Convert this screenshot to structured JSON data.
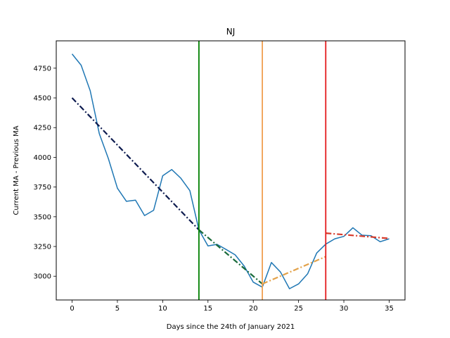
{
  "chart_data": {
    "type": "line",
    "title": "NJ",
    "xlabel": "Days since the 24th of January 2021",
    "ylabel": "Current MA - Previous MA",
    "xlim": [
      -1.75,
      36.75
    ],
    "ylim": [
      2800,
      4980
    ],
    "xticks": [
      0,
      5,
      10,
      15,
      20,
      25,
      30,
      35
    ],
    "yticks": [
      3000,
      3250,
      3500,
      3750,
      4000,
      4250,
      4500,
      4750
    ],
    "grid": false,
    "series": [
      {
        "style": "solid",
        "color": "#1f77b4",
        "x": [
          0,
          1,
          2,
          3,
          4,
          5,
          6,
          7,
          8,
          9,
          10,
          11,
          12,
          13,
          14,
          15,
          16,
          17,
          18,
          19,
          20,
          21,
          22,
          23,
          24,
          25,
          26,
          27,
          28,
          29,
          30,
          31,
          32,
          33,
          34,
          35
        ],
        "y": [
          4870,
          4775,
          4560,
          4200,
          3990,
          3740,
          3630,
          3640,
          3510,
          3555,
          3845,
          3897,
          3825,
          3720,
          3390,
          3255,
          3268,
          3225,
          3180,
          3085,
          2950,
          2908,
          3115,
          3035,
          2895,
          2935,
          3020,
          3195,
          3270,
          3315,
          3335,
          3408,
          3345,
          3340,
          3290,
          3315
        ]
      },
      {
        "style": "dashdot",
        "color": "#0d1b4f",
        "x": [
          0,
          14
        ],
        "y": [
          4500,
          3390
        ]
      },
      {
        "style": "dashdot",
        "color": "#1a6b3a",
        "x": [
          14,
          21
        ],
        "y": [
          3390,
          2935
        ]
      },
      {
        "style": "dashdot",
        "color": "#e3a24a",
        "x": [
          21,
          28
        ],
        "y": [
          2935,
          3165
        ]
      },
      {
        "style": "dashdot",
        "color": "#d83b2b",
        "x": [
          28,
          35
        ],
        "y": [
          3362,
          3318
        ]
      }
    ],
    "vlines": [
      {
        "x": 14,
        "color": "#008000"
      },
      {
        "x": 21,
        "color": "#f0a050"
      },
      {
        "x": 28,
        "color": "#e31a1c"
      }
    ]
  }
}
